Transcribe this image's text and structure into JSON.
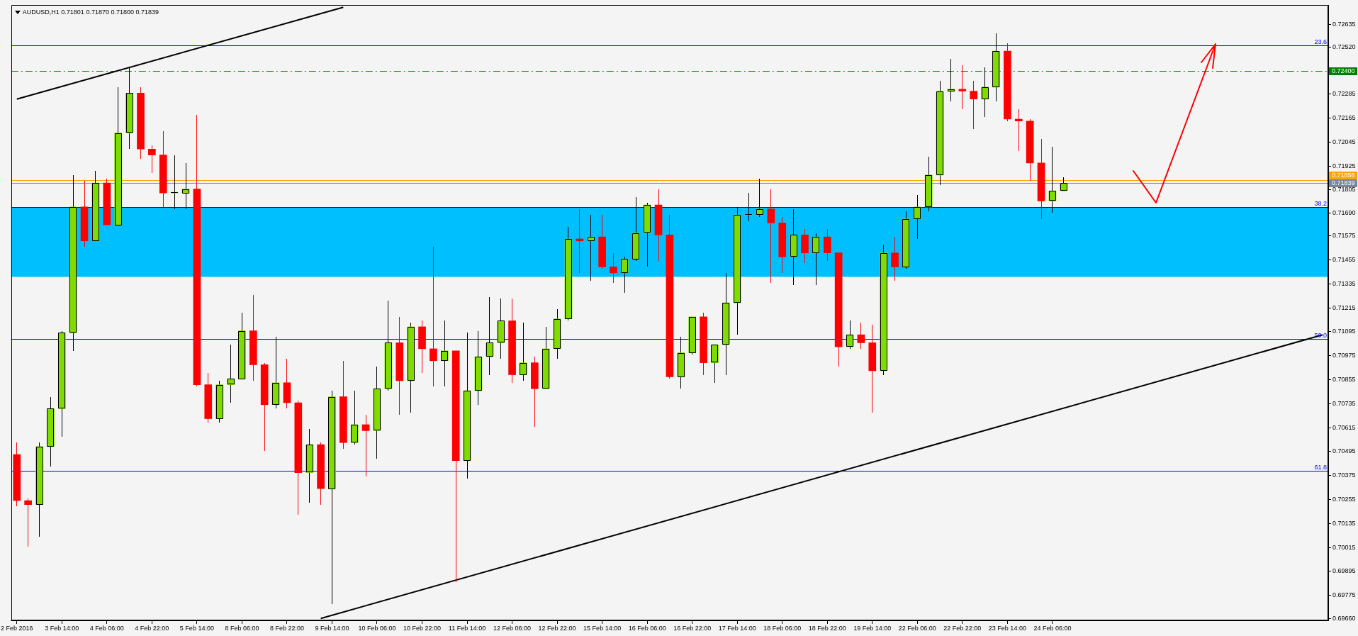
{
  "chart_data": {
    "type": "candlestick",
    "title": "AUDUSD,H1 0.71801 0.71870 0.71800 0.71839",
    "categories": [
      "2 Feb 2016",
      null,
      null,
      null,
      "3 Feb 14:00",
      null,
      null,
      null,
      "4 Feb 06:00",
      null,
      null,
      null,
      "4 Feb 22:00",
      null,
      null,
      null,
      "5 Feb 14:00",
      null,
      null,
      null,
      "8 Feb 06:00",
      null,
      null,
      null,
      "8 Feb 22:00",
      null,
      null,
      null,
      "9 Feb 14:00",
      null,
      null,
      null,
      "10 Feb 06:00",
      null,
      null,
      null,
      "10 Feb 22:00",
      null,
      null,
      null,
      "11 Feb 14:00",
      null,
      null,
      null,
      "12 Feb 06:00",
      null,
      null,
      null,
      "12 Feb 22:00",
      null,
      null,
      null,
      "15 Feb 14:00",
      null,
      null,
      null,
      "16 Feb 06:00",
      null,
      null,
      null,
      "16 Feb 22:00",
      null,
      null,
      null,
      "17 Feb 14:00",
      null,
      null,
      null,
      "18 Feb 06:00",
      null,
      null,
      null,
      "18 Feb 22:00",
      null,
      null,
      null,
      "19 Feb 14:00",
      null,
      null,
      null,
      "22 Feb 06:00",
      null,
      null,
      null,
      "22 Feb 22:00",
      null,
      null,
      null,
      "23 Feb 14:00",
      null,
      null,
      null,
      "24 Feb 06:00",
      null,
      null,
      null,
      null,
      null,
      null,
      null,
      null,
      null,
      null,
      null,
      null,
      null,
      null,
      null,
      null,
      null,
      null,
      null,
      null,
      null,
      null,
      null,
      null
    ],
    "series": [
      {
        "type": "line",
        "color": "#000000",
        "values": [
          0.7226,
          null,
          null,
          null,
          null,
          null,
          null,
          null,
          null,
          null,
          null,
          null,
          null,
          null,
          null,
          null,
          null,
          null,
          null,
          null,
          null,
          null,
          null,
          null,
          null,
          null,
          null,
          null,
          null,
          0.7272,
          null,
          null,
          null,
          null,
          null,
          null,
          null,
          null,
          null,
          null,
          null,
          null,
          null,
          null,
          null,
          null,
          null,
          null,
          null,
          null,
          null,
          null,
          null,
          null,
          null,
          null,
          null,
          null,
          null,
          null,
          null,
          null,
          null,
          null,
          null,
          null,
          null,
          null,
          null,
          null,
          null,
          null,
          null,
          null,
          null,
          null,
          null,
          null,
          null,
          null,
          null,
          null,
          null,
          null,
          null,
          null,
          null,
          null,
          null,
          null,
          null,
          null,
          null,
          null,
          null,
          null,
          null,
          null,
          null,
          null,
          null,
          null,
          null,
          null,
          null,
          null,
          null,
          null,
          null,
          null,
          null,
          null,
          null,
          null,
          null,
          null,
          null
        ]
      },
      {
        "type": "line",
        "color": "#000000",
        "values": [
          null,
          null,
          null,
          null,
          null,
          null,
          null,
          null,
          null,
          null,
          null,
          null,
          null,
          null,
          null,
          null,
          null,
          null,
          null,
          null,
          null,
          null,
          null,
          null,
          null,
          null,
          null,
          0.6966,
          null,
          null,
          null,
          null,
          null,
          null,
          null,
          null,
          null,
          null,
          null,
          null,
          null,
          null,
          null,
          null,
          null,
          null,
          null,
          null,
          null,
          null,
          null,
          null,
          null,
          null,
          null,
          null,
          null,
          null,
          null,
          null,
          null,
          null,
          null,
          null,
          null,
          null,
          null,
          null,
          null,
          null,
          null,
          null,
          null,
          null,
          null,
          null,
          null,
          null,
          null,
          null,
          null,
          null,
          null,
          null,
          null,
          null,
          null,
          null,
          null,
          null,
          null,
          null,
          null,
          null,
          null,
          null,
          null,
          null,
          null,
          null,
          null,
          null,
          null,
          null,
          null,
          null,
          null,
          null,
          null,
          null,
          null,
          null,
          null,
          null,
          null,
          null,
          0.7108
        ]
      },
      {
        "ohlc": [
          [
            0.7048,
            0.7054,
            0.7022,
            0.7025
          ],
          [
            0.7025,
            0.7026,
            0.7002,
            0.7023
          ],
          [
            0.7023,
            0.7054,
            0.7007,
            0.7052
          ],
          [
            0.7052,
            0.7077,
            0.7042,
            0.7071
          ],
          [
            0.7071,
            0.711,
            0.7057,
            0.7109
          ],
          [
            0.7109,
            0.7188,
            0.71,
            0.7172
          ],
          [
            0.7172,
            0.7185,
            0.7152,
            0.7155
          ],
          [
            0.7155,
            0.719,
            0.7155,
            0.7184
          ],
          [
            0.7184,
            0.7186,
            0.7163,
            0.7163
          ],
          [
            0.7163,
            0.7232,
            0.7163,
            0.7209
          ],
          [
            0.7209,
            0.7242,
            0.7201,
            0.7229
          ],
          [
            0.7229,
            0.7232,
            0.7196,
            0.7201
          ],
          [
            0.7201,
            0.7203,
            0.7189,
            0.7198
          ],
          [
            0.7198,
            0.721,
            0.7172,
            0.7179
          ],
          [
            0.7179,
            0.7198,
            0.7171,
            0.7179
          ],
          [
            0.7179,
            0.7194,
            0.7171,
            0.7181
          ],
          [
            0.7181,
            0.7218,
            0.7082,
            0.7083
          ],
          [
            0.7083,
            0.7089,
            0.7064,
            0.7066
          ],
          [
            0.7066,
            0.7085,
            0.7064,
            0.7083
          ],
          [
            0.7083,
            0.7103,
            0.7074,
            0.7086
          ],
          [
            0.7086,
            0.7119,
            0.7086,
            0.711
          ],
          [
            0.711,
            0.7128,
            0.7085,
            0.7093
          ],
          [
            0.7093,
            0.7094,
            0.705,
            0.7073
          ],
          [
            0.7073,
            0.7107,
            0.7071,
            0.7084
          ],
          [
            0.7084,
            0.7096,
            0.7071,
            0.7074
          ],
          [
            0.7074,
            0.7075,
            0.7018,
            0.7039
          ],
          [
            0.7039,
            0.7061,
            0.7024,
            0.7053
          ],
          [
            0.7053,
            0.7054,
            0.7023,
            0.7031
          ],
          [
            0.7031,
            0.708,
            0.6973,
            0.7077
          ],
          [
            0.7077,
            0.7095,
            0.7051,
            0.7054
          ],
          [
            0.7054,
            0.708,
            0.7053,
            0.7063
          ],
          [
            0.7063,
            0.7068,
            0.7037,
            0.706
          ],
          [
            0.706,
            0.7092,
            0.7046,
            0.7081
          ],
          [
            0.7081,
            0.7125,
            0.708,
            0.7104
          ],
          [
            0.7104,
            0.7117,
            0.7068,
            0.7085
          ],
          [
            0.7085,
            0.7114,
            0.7069,
            0.7112
          ],
          [
            0.7112,
            0.7115,
            0.7089,
            0.7101
          ],
          [
            0.7101,
            0.7152,
            0.7082,
            0.7095
          ],
          [
            0.7095,
            0.7115,
            0.7082,
            0.71
          ],
          [
            0.71,
            0.71,
            0.6984,
            0.7045
          ],
          [
            0.7045,
            0.7109,
            0.7036,
            0.708
          ],
          [
            0.708,
            0.711,
            0.7073,
            0.7097
          ],
          [
            0.7097,
            0.7127,
            0.7088,
            0.7104
          ],
          [
            0.7104,
            0.7126,
            0.7096,
            0.7115
          ],
          [
            0.7115,
            0.7126,
            0.7084,
            0.7088
          ],
          [
            0.7088,
            0.7114,
            0.7085,
            0.7094
          ],
          [
            0.7094,
            0.7097,
            0.7062,
            0.7081
          ],
          [
            0.7081,
            0.7112,
            0.7081,
            0.7101
          ],
          [
            0.7101,
            0.7121,
            0.7096,
            0.7116
          ],
          [
            0.7116,
            0.7162,
            0.7115,
            0.7156
          ],
          [
            0.7156,
            0.7171,
            0.7139,
            0.7155
          ],
          [
            0.7155,
            0.7168,
            0.7135,
            0.7157
          ],
          [
            0.7157,
            0.7168,
            0.7141,
            0.7142
          ],
          [
            0.7142,
            0.7149,
            0.7134,
            0.7139
          ],
          [
            0.7139,
            0.7147,
            0.7129,
            0.7146
          ],
          [
            0.7146,
            0.7177,
            0.7145,
            0.7159
          ],
          [
            0.7159,
            0.7174,
            0.7142,
            0.7173
          ],
          [
            0.7173,
            0.7181,
            0.7145,
            0.7158
          ],
          [
            0.7158,
            0.7168,
            0.7086,
            0.7087
          ],
          [
            0.7087,
            0.7107,
            0.7081,
            0.7099
          ],
          [
            0.7099,
            0.7117,
            0.7098,
            0.7117
          ],
          [
            0.7117,
            0.7119,
            0.7088,
            0.7094
          ],
          [
            0.7094,
            0.7103,
            0.7084,
            0.7103
          ],
          [
            0.7103,
            0.7139,
            0.7088,
            0.7124
          ],
          [
            0.7124,
            0.7172,
            0.7108,
            0.7168
          ],
          [
            0.7168,
            0.7179,
            0.7165,
            0.7168
          ],
          [
            0.7168,
            0.7186,
            0.7167,
            0.7171
          ],
          [
            0.7171,
            0.7181,
            0.7134,
            0.7164
          ],
          [
            0.7164,
            0.7167,
            0.7139,
            0.7147
          ],
          [
            0.7147,
            0.7171,
            0.7133,
            0.7158
          ],
          [
            0.7158,
            0.7161,
            0.7144,
            0.7149
          ],
          [
            0.7149,
            0.7159,
            0.7133,
            0.7157
          ],
          [
            0.7157,
            0.7161,
            0.7145,
            0.7149
          ],
          [
            0.7149,
            0.7149,
            0.7092,
            0.7102
          ],
          [
            0.7102,
            0.7115,
            0.7101,
            0.7108
          ],
          [
            0.7108,
            0.7114,
            0.7101,
            0.7104
          ],
          [
            0.7104,
            0.7113,
            0.7069,
            0.709
          ],
          [
            0.709,
            0.7153,
            0.7088,
            0.7149
          ],
          [
            0.7149,
            0.7157,
            0.7135,
            0.7142
          ],
          [
            0.7142,
            0.717,
            0.7141,
            0.7166
          ],
          [
            0.7166,
            0.7178,
            0.7156,
            0.7172
          ],
          [
            0.7172,
            0.7197,
            0.717,
            0.7188
          ],
          [
            0.7188,
            0.7235,
            0.7183,
            0.723
          ],
          [
            0.723,
            0.7246,
            0.7225,
            0.7231
          ],
          [
            0.7231,
            0.7243,
            0.7221,
            0.723
          ],
          [
            0.723,
            0.7235,
            0.7211,
            0.7226
          ],
          [
            0.7226,
            0.7242,
            0.7217,
            0.7232
          ],
          [
            0.7232,
            0.7259,
            0.7225,
            0.725
          ],
          [
            0.725,
            0.7254,
            0.7215,
            0.7216
          ],
          [
            0.7216,
            0.7221,
            0.72,
            0.7215
          ],
          [
            0.7215,
            0.7216,
            0.7185,
            0.7194
          ],
          [
            0.7194,
            0.7206,
            0.7166,
            0.7175
          ],
          [
            0.7175,
            0.7202,
            0.7169,
            0.718
          ],
          [
            0.71801,
            0.7187,
            0.718,
            0.71839
          ],
          null,
          null,
          null,
          null,
          null,
          null,
          null,
          null,
          null,
          null,
          null,
          null,
          null,
          null,
          null,
          null,
          null,
          null,
          null,
          null,
          null,
          null,
          null
        ],
        "colors": [
          "#ff0000",
          "#ff0000",
          "#7fdb00",
          "#7fdb00",
          "#7fdb00",
          "#7fdb00",
          "#ff0000",
          "#7fdb00",
          "#ff0000",
          "#7fdb00",
          "#7fdb00",
          "#ff0000",
          "#ff0000",
          "#ff0000",
          "#7fdb00",
          "#7fdb00",
          "#ff0000",
          "#ff0000",
          "#7fdb00",
          "#7fdb00",
          "#7fdb00",
          "#ff0000",
          "#ff0000",
          "#7fdb00",
          "#ff0000",
          "#ff0000",
          "#7fdb00",
          "#ff0000",
          "#7fdb00",
          "#ff0000",
          "#7fdb00",
          "#ff0000",
          "#7fdb00",
          "#7fdb00",
          "#ff0000",
          "#7fdb00",
          "#ff0000",
          "#ff0000",
          "#7fdb00",
          "#ff0000",
          "#7fdb00",
          "#7fdb00",
          "#7fdb00",
          "#7fdb00",
          "#ff0000",
          "#7fdb00",
          "#ff0000",
          "#7fdb00",
          "#7fdb00",
          "#7fdb00",
          "#ff0000",
          "#7fdb00",
          "#ff0000",
          "#ff0000",
          "#7fdb00",
          "#7fdb00",
          "#7fdb00",
          "#ff0000",
          "#ff0000",
          "#7fdb00",
          "#7fdb00",
          "#ff0000",
          "#7fdb00",
          "#7fdb00",
          "#7fdb00",
          "#7fdb00",
          "#7fdb00",
          "#ff0000",
          "#ff0000",
          "#7fdb00",
          "#ff0000",
          "#7fdb00",
          "#ff0000",
          "#ff0000",
          "#7fdb00",
          "#ff0000",
          "#ff0000",
          "#7fdb00",
          "#ff0000",
          "#7fdb00",
          "#7fdb00",
          "#7fdb00",
          "#7fdb00",
          "#7fdb00",
          "#ff0000",
          "#ff0000",
          "#7fdb00",
          "#7fdb00",
          "#ff0000",
          "#ff0000",
          "#ff0000",
          "#ff0000",
          "#7fdb00",
          "#7fdb00",
          null,
          null,
          null,
          null,
          null,
          null,
          null,
          null,
          null,
          null,
          null,
          null,
          null,
          null,
          null,
          null,
          null,
          null,
          null,
          null,
          null,
          null,
          null
        ]
      }
    ],
    "ylim": [
      0.6965,
      0.7273
    ],
    "yticks": [
      {
        "value": 0.6966,
        "label": "0.69660"
      },
      0.69775,
      0.69895,
      0.70015,
      0.70135,
      0.70255,
      0.70375,
      0.70495,
      0.70615,
      0.70735,
      0.70855,
      0.70975,
      0.71095,
      0.71215,
      0.71335,
      0.71455,
      0.71575,
      {
        "value": 0.7169,
        "label": "0.71690"
      },
      0.71805,
      0.71925,
      0.72045,
      0.72165,
      0.72285,
      {
        "value": 0.7252,
        "label": "0.72520"
      },
      0.72635
    ],
    "bands": [
      {
        "axis": "y",
        "from": 0.7137,
        "to": 0.7172,
        "color": "#00bfff"
      }
    ],
    "ref_lines": [
      {
        "axis": "y",
        "value": 0.7253,
        "color": "#0000ff"
      },
      {
        "axis": "y",
        "value": 0.724,
        "label": "0.72400",
        "color": "#008000",
        "line_style": "dashed"
      },
      {
        "axis": "y",
        "value": 0.71856,
        "label": "0.71856",
        "color": "#ffa500"
      },
      {
        "axis": "y",
        "value": 0.71839,
        "label": "0.71839",
        "color": "#778899"
      },
      {
        "axis": "y",
        "value": 0.7172,
        "color": "#0000ff"
      },
      {
        "axis": "y",
        "value": 0.7106,
        "color": "#0000ff"
      },
      {
        "axis": "y",
        "value": 0.704,
        "color": "#0000ff"
      }
    ],
    "annotations": [
      {
        "text": "23.6",
        "y": 0.7253
      },
      {
        "text": "38.2",
        "y": 0.7172
      },
      {
        "text": "50.0",
        "y": 0.7106
      },
      {
        "text": "61.8",
        "y": 0.704
      }
    ]
  }
}
